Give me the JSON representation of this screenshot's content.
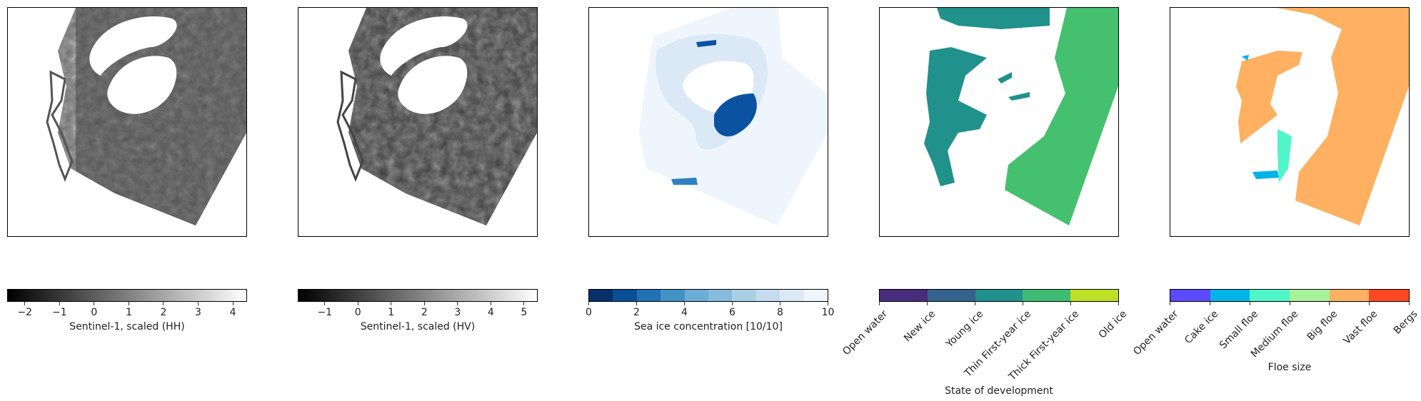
{
  "chart_data": [
    {
      "type": "heatmap",
      "label": "Sentinel-1, scaled (HH)",
      "colormap": "gray",
      "range": [
        -2.5,
        4.4
      ],
      "ticks": [
        "−2",
        "−1",
        "0",
        "1",
        "2",
        "3",
        "4"
      ],
      "tick_values": [
        -2,
        -1,
        0,
        1,
        2,
        3,
        4
      ]
    },
    {
      "type": "heatmap",
      "label": "Sentinel-1, scaled (HV)",
      "colormap": "gray",
      "range": [
        -1.8,
        5.4
      ],
      "ticks": [
        "−1",
        "0",
        "1",
        "2",
        "3",
        "4",
        "5"
      ],
      "tick_values": [
        -1,
        0,
        1,
        2,
        3,
        4,
        5
      ]
    },
    {
      "type": "heatmap",
      "label": "Sea ice concentration [10/10]",
      "colormap": "Blues_r",
      "range": [
        0,
        10
      ],
      "ticks": [
        "0",
        "2",
        "4",
        "6",
        "8",
        "10"
      ],
      "tick_values": [
        0,
        2,
        4,
        6,
        8,
        10
      ],
      "colors": [
        "#08306b",
        "#0a4f96",
        "#2171b5",
        "#4292c6",
        "#6aadd5",
        "#85bcdc",
        "#a9cfe5",
        "#c6dbef",
        "#dbe9f6",
        "#eef5fc"
      ]
    },
    {
      "type": "heatmap",
      "label": "State of development",
      "categories": [
        "Open water",
        "New ice",
        "Young ice",
        "Thin First-year ice",
        "Thick First-year ice",
        "Old ice"
      ],
      "colors": [
        "#472d7b",
        "#33638d",
        "#21918c",
        "#3fbc73",
        "#bddf26"
      ]
    },
    {
      "type": "heatmap",
      "label": "Floe size",
      "categories": [
        "Open water",
        "Cake ice",
        "Small floe",
        "Medium floe",
        "Big floe",
        "Vast floe",
        "Bergs"
      ],
      "colors": [
        "#5a4bff",
        "#00b4e8",
        "#50f5c8",
        "#a8f09a",
        "#ffb060",
        "#ff4822"
      ]
    }
  ],
  "colors": {
    "sic_open": "#eef5fc",
    "sic_mid": "#dbe9f6",
    "sic_high": "#0b53a1",
    "sic_mid_dark": "#2f7fc1",
    "sod_young": "#21918c",
    "sod_thin": "#44c06f",
    "floe_big": "#ffb060",
    "floe_small": "#50f5c8",
    "floe_cake": "#00b4e8"
  }
}
